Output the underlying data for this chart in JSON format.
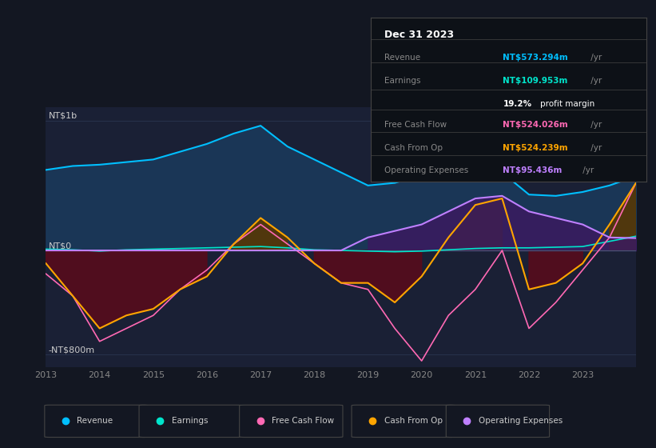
{
  "bg_color": "#131722",
  "plot_bg_color": "#1a2035",
  "title_box": {
    "date": "Dec 31 2023",
    "rows": [
      {
        "label": "Revenue",
        "value": "NT$573.294m",
        "value_color": "#00bfff"
      },
      {
        "label": "Earnings",
        "value": "NT$109.953m",
        "value_color": "#00e5cc"
      },
      {
        "label": "",
        "value": "19.2% profit margin",
        "value_color": "#ffffff"
      },
      {
        "label": "Free Cash Flow",
        "value": "NT$524.026m",
        "value_color": "#ff69b4"
      },
      {
        "label": "Cash From Op",
        "value": "NT$524.239m",
        "value_color": "#ffa500"
      },
      {
        "label": "Operating Expenses",
        "value": "NT$95.436m",
        "value_color": "#bf80ff"
      }
    ]
  },
  "ylabel_top": "NT$1b",
  "ylabel_zero": "NT$0",
  "ylabel_bottom": "-NT$800m",
  "ylim": [
    -900,
    1100
  ],
  "revenue_color": "#00bfff",
  "earnings_color": "#00e5cc",
  "free_cash_flow_color": "#ff69b4",
  "cash_from_op_color": "#ffa500",
  "operating_expenses_color": "#bf80ff",
  "revenue_fill_color": "#1a3a5c",
  "grid_color": "#2a3550",
  "legend_items": [
    {
      "label": "Revenue",
      "color": "#00bfff"
    },
    {
      "label": "Earnings",
      "color": "#00e5cc"
    },
    {
      "label": "Free Cash Flow",
      "color": "#ff69b4"
    },
    {
      "label": "Cash From Op",
      "color": "#ffa500"
    },
    {
      "label": "Operating Expenses",
      "color": "#bf80ff"
    }
  ]
}
